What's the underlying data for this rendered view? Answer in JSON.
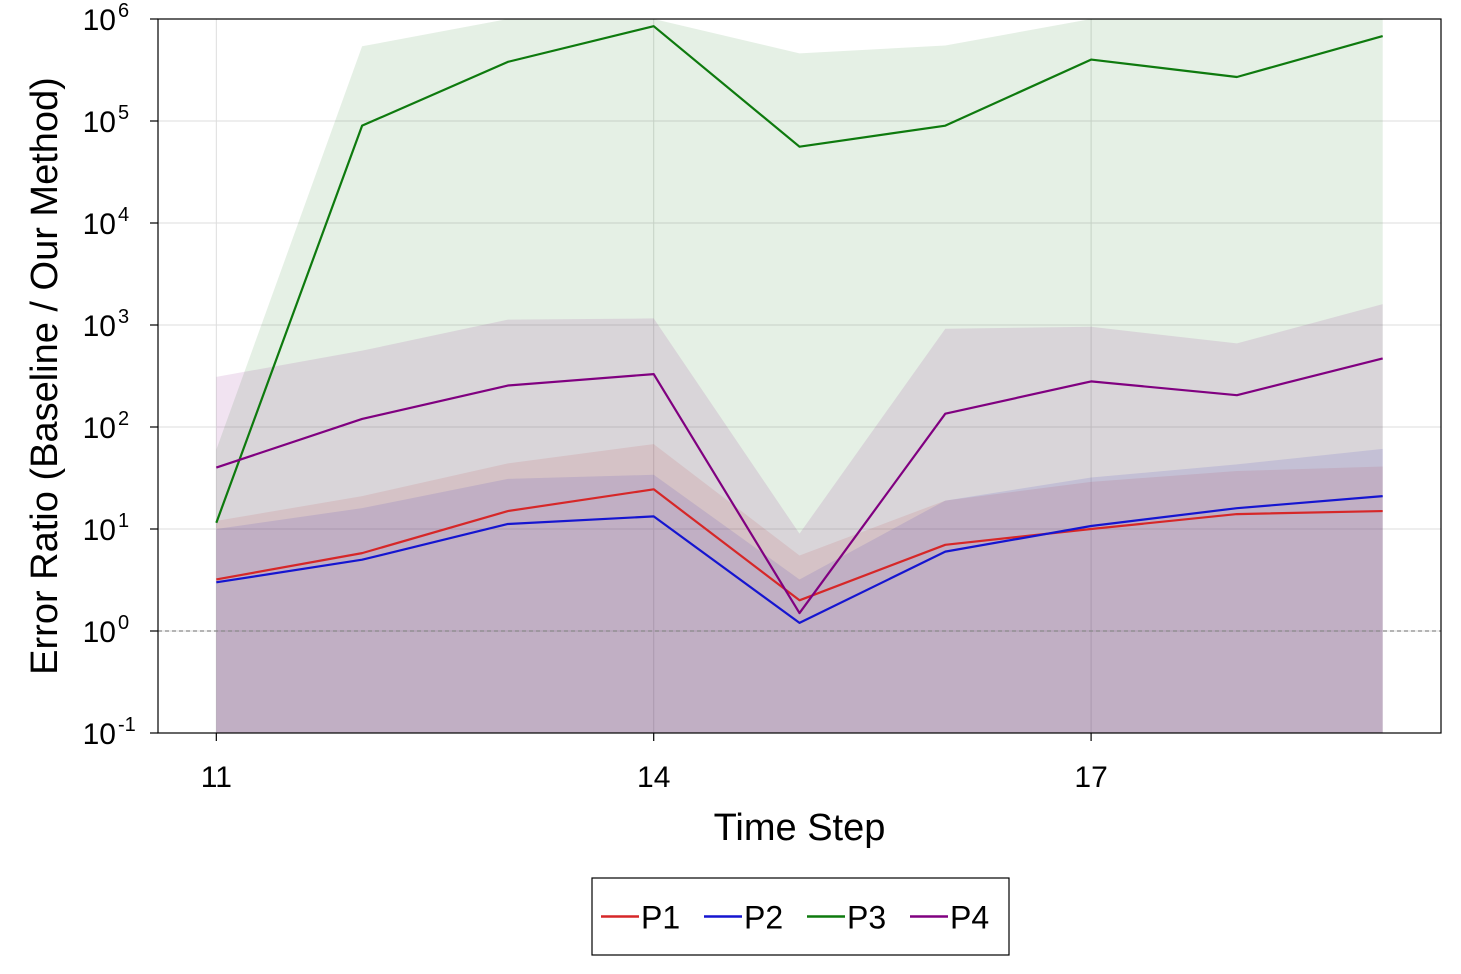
{
  "chart_data": {
    "type": "line",
    "title": "",
    "xlabel": "Time Step",
    "ylabel": "Error Ratio (Baseline / Our Method)",
    "xlim": [
      10.6,
      19.4
    ],
    "ylim": [
      0.1,
      1000000
    ],
    "yscale": "log",
    "xticks": [
      11,
      14,
      17
    ],
    "yticks": [
      {
        "value": 0.1,
        "base": "10",
        "exp": "-1"
      },
      {
        "value": 1,
        "base": "10",
        "exp": "0"
      },
      {
        "value": 10,
        "base": "10",
        "exp": "1"
      },
      {
        "value": 100,
        "base": "10",
        "exp": "2"
      },
      {
        "value": 1000,
        "base": "10",
        "exp": "3"
      },
      {
        "value": 10000,
        "base": "10",
        "exp": "4"
      },
      {
        "value": 100000,
        "base": "10",
        "exp": "5"
      },
      {
        "value": 1000000,
        "base": "10",
        "exp": "6"
      }
    ],
    "grid": true,
    "reference_line": {
      "y": 1,
      "style": "dashed",
      "color": "#888888"
    },
    "legend_position": "bottom",
    "x": [
      11,
      12,
      13,
      14,
      15,
      16,
      17,
      18,
      19
    ],
    "series": [
      {
        "name": "P1",
        "color": "#d62728",
        "values": [
          3.2,
          5.8,
          15,
          24.5,
          2.0,
          7.0,
          10,
          14,
          15
        ],
        "band_upper": [
          12,
          21,
          44,
          68,
          5.5,
          19,
          29,
          37,
          41
        ],
        "band_lower": [
          0.1,
          0.1,
          0.1,
          0.1,
          0.1,
          0.1,
          0.1,
          0.1,
          0.1
        ]
      },
      {
        "name": "P2",
        "color": "#1515d0",
        "values": [
          3.0,
          5.0,
          11.2,
          13.3,
          1.2,
          6.0,
          10.7,
          16,
          21
        ],
        "band_upper": [
          10,
          16,
          31,
          34,
          3.2,
          19,
          32,
          43,
          61
        ],
        "band_lower": [
          0.1,
          0.1,
          0.1,
          0.1,
          0.1,
          0.1,
          0.1,
          0.1,
          0.1
        ]
      },
      {
        "name": "P3",
        "color": "#0e7a0e",
        "values": [
          11.5,
          90000,
          380000,
          850000,
          56000,
          90000,
          400000,
          270000,
          680000
        ],
        "band_upper": [
          60,
          540000,
          1000000,
          1000000,
          460000,
          550000,
          1000000,
          1000000,
          1000000
        ],
        "band_lower": [
          0.1,
          0.1,
          0.1,
          0.1,
          0.1,
          0.1,
          0.1,
          0.1,
          0.1
        ]
      },
      {
        "name": "P4",
        "color": "#800080",
        "values": [
          40,
          120,
          255,
          330,
          1.5,
          135,
          280,
          205,
          470
        ],
        "band_upper": [
          310,
          560,
          1130,
          1160,
          9,
          920,
          960,
          660,
          1600
        ],
        "band_lower": [
          0.1,
          0.1,
          0.1,
          0.1,
          0.1,
          0.1,
          0.1,
          0.1,
          0.1
        ]
      }
    ]
  }
}
